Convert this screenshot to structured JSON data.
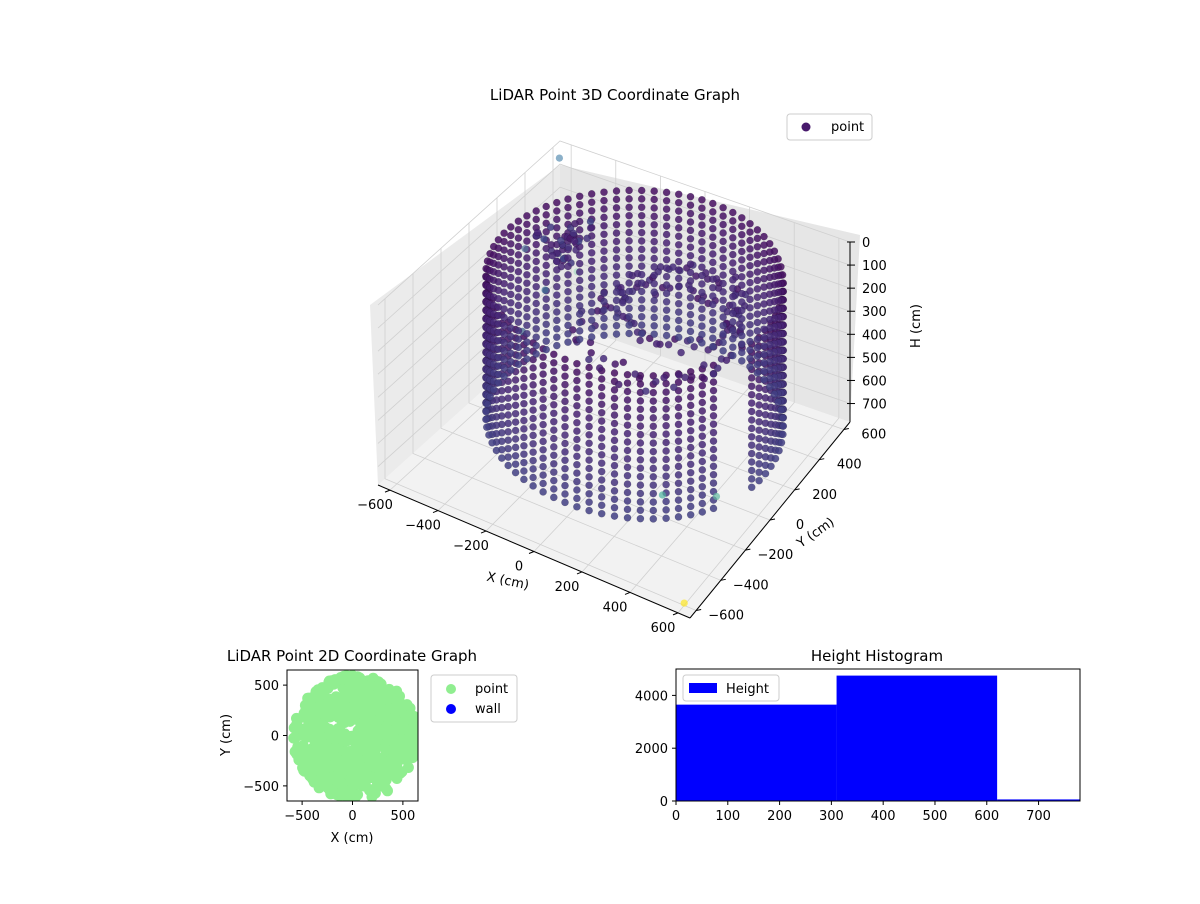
{
  "chart_data": [
    {
      "type": "scatter",
      "projection": "3d",
      "title": "LiDAR Point 3D Coordinate Graph",
      "xlabel": "X (cm)",
      "ylabel": "Y (cm)",
      "zlabel": "H (cm)",
      "xlim": [
        -650,
        650
      ],
      "ylim": [
        -650,
        650
      ],
      "zlim": [
        0,
        780
      ],
      "zaxis_inverted": true,
      "xticks": [
        "−600",
        "−400",
        "−200",
        "0",
        "200",
        "400",
        "600"
      ],
      "yticks": [
        "−600",
        "−400",
        "−200",
        "0",
        "200",
        "400",
        "600"
      ],
      "zticks": [
        "0",
        "100",
        "200",
        "300",
        "400",
        "500",
        "600",
        "700"
      ],
      "colormap": "viridis",
      "legend": {
        "position": "upper-right",
        "entries": [
          {
            "label": "point",
            "color": "#481a6c"
          }
        ]
      },
      "series": [
        {
          "name": "point",
          "structures": [
            {
              "shape": "cylinder-wall",
              "center": [
                50,
                40
              ],
              "radius": 560,
              "theta_deg": [
                -10,
                330
              ],
              "h_range": [
                0,
                620
              ]
            },
            {
              "shape": "ring",
              "center": [
                120,
                120
              ],
              "radius": 300,
              "h": 250
            },
            {
              "shape": "ring",
              "center": [
                150,
                200
              ],
              "radius": 230,
              "h": 170
            },
            {
              "shape": "cluster",
              "center": [
                -450,
                350
              ],
              "h": 200
            }
          ],
          "outliers": [
            {
              "x": -640,
              "y": 630,
              "h": 60,
              "color": "#5a8fb2"
            },
            {
              "x": -650,
              "y": 400,
              "h": 330,
              "color": "#55779b"
            },
            {
              "x": -500,
              "y": 300,
              "h": 400,
              "color": "#3f6f94"
            },
            {
              "x": -420,
              "y": 0,
              "h": 380,
              "color": "#3d5f8a"
            },
            {
              "x": -300,
              "y": 200,
              "h": 190,
              "color": "#a9d9c4"
            },
            {
              "x": 350,
              "y": -300,
              "h": 600,
              "color": "#4bb29c"
            },
            {
              "x": 500,
              "y": -150,
              "h": 640,
              "color": "#62b9a1"
            },
            {
              "x": 600,
              "y": -600,
              "h": 770,
              "color": "#fde725"
            }
          ]
        }
      ]
    },
    {
      "type": "scatter",
      "title": "LiDAR Point 2D Coordinate Graph",
      "xlabel": "X (cm)",
      "ylabel": "Y (cm)",
      "xlim": [
        -650,
        650
      ],
      "ylim": [
        -650,
        650
      ],
      "xticks": [
        -500,
        0,
        500
      ],
      "yticks": [
        -500,
        0,
        500
      ],
      "legend": {
        "position": "outside-right",
        "entries": [
          {
            "label": "point",
            "color": "#90ee90"
          },
          {
            "label": "wall",
            "color": "#0000ff"
          }
        ]
      },
      "series": [
        {
          "name": "point",
          "color": "#90ee90",
          "region": "disk",
          "center": [
            30,
            -20
          ],
          "radius": 620
        },
        {
          "name": "wall",
          "color": "#0000ff",
          "values": []
        }
      ]
    },
    {
      "type": "bar",
      "title": "Height Histogram",
      "xlabel": "",
      "ylabel": "",
      "xlim": [
        0,
        780
      ],
      "ylim": [
        0,
        5000
      ],
      "xticks": [
        0,
        100,
        200,
        300,
        400,
        500,
        600,
        700
      ],
      "yticks": [
        0,
        2000,
        4000
      ],
      "legend": {
        "position": "upper-left",
        "entries": [
          {
            "label": "Height",
            "color": "#0000ff"
          }
        ]
      },
      "series": [
        {
          "name": "Height",
          "color": "#0000ff",
          "bins": [
            {
              "from": 0,
              "to": 310,
              "count": 3650
            },
            {
              "from": 310,
              "to": 620,
              "count": 4750
            },
            {
              "from": 620,
              "to": 780,
              "count": 60
            }
          ]
        }
      ]
    }
  ]
}
